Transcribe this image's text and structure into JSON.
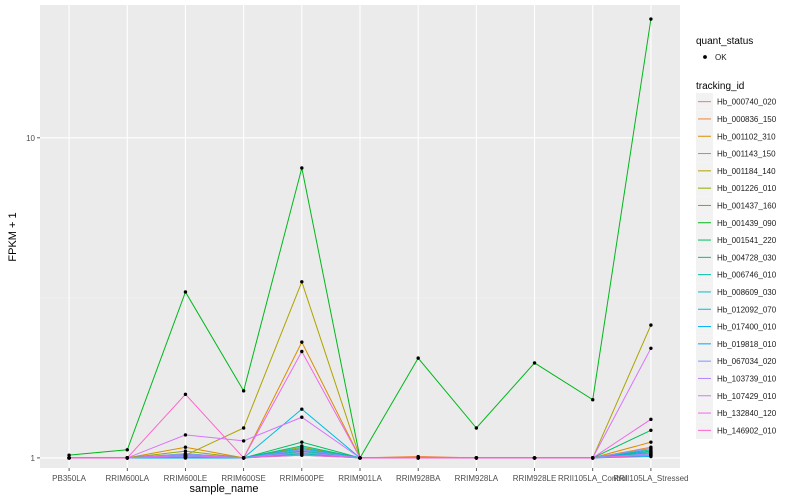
{
  "chart_data": {
    "type": "line",
    "xlabel": "sample_name",
    "ylabel": "FPKM + 1",
    "y_scale": "log10",
    "ylim": [
      0.93,
      26
    ],
    "y_ticks": [
      {
        "value": 1,
        "label": "1"
      },
      {
        "value": 10,
        "label": "10"
      }
    ],
    "grid": true,
    "legend_position": "right",
    "categories": [
      "PB350LA",
      "RRIM600LA",
      "RRIM600LE",
      "RRIM600SE",
      "RRIM600PE",
      "RRIM901LA",
      "RRIM928BA",
      "RRIM928LA",
      "RRIM928LE",
      "RRII105LA_Control",
      "RRII105LA_Stressed"
    ],
    "quant_status": {
      "title": "quant_status",
      "items": [
        "OK"
      ]
    },
    "legend_title": "tracking_id",
    "series": [
      {
        "name": "Hb_000740_020",
        "color": "#F8766D",
        "values": [
          1,
          1,
          1.02,
          1,
          1.05,
          1,
          1,
          1,
          1,
          1,
          1.05
        ]
      },
      {
        "name": "Hb_000836_150",
        "color": "#EC8239",
        "values": [
          1,
          1,
          1.01,
          1,
          1.03,
          1,
          1.01,
          1,
          1,
          1,
          1.08
        ]
      },
      {
        "name": "Hb_001102_310",
        "color": "#DB8E00",
        "values": [
          1,
          1,
          1.08,
          1,
          2.3,
          1,
          1,
          1,
          1,
          1,
          1.12
        ]
      },
      {
        "name": "Hb_001143_150",
        "color": "#C79800",
        "values": [
          1,
          1,
          1.03,
          1,
          1.06,
          1,
          1,
          1,
          1,
          1,
          1.04
        ]
      },
      {
        "name": "Hb_001184_140",
        "color": "#AEA200",
        "values": [
          1,
          1,
          1.02,
          1.24,
          3.55,
          1,
          1,
          1,
          1,
          1,
          2.6
        ]
      },
      {
        "name": "Hb_001226_010",
        "color": "#8FAA00",
        "values": [
          1,
          1,
          1.05,
          1,
          1.08,
          1,
          1,
          1,
          1,
          1,
          1.03
        ]
      },
      {
        "name": "Hb_001437_160",
        "color": "#64B200",
        "values": [
          1,
          1,
          1.01,
          1,
          1.04,
          1,
          1,
          1,
          1,
          1,
          1.02
        ]
      },
      {
        "name": "Hb_001439_090",
        "color": "#00B81B",
        "values": [
          1.02,
          1.06,
          3.3,
          1.62,
          8.05,
          1,
          2.05,
          1.24,
          1.98,
          1.52,
          23.5
        ]
      },
      {
        "name": "Hb_001541_220",
        "color": "#00BD5C",
        "values": [
          1,
          1,
          1.02,
          1,
          1.12,
          1,
          1,
          1,
          1,
          1,
          1.22
        ]
      },
      {
        "name": "Hb_004728_030",
        "color": "#00C086",
        "values": [
          1,
          1,
          1.01,
          1,
          1.09,
          1,
          1,
          1,
          1,
          1,
          1.06
        ]
      },
      {
        "name": "Hb_006746_010",
        "color": "#00C1A7",
        "values": [
          1,
          1,
          1,
          1,
          1.05,
          1,
          1,
          1,
          1,
          1,
          1.04
        ]
      },
      {
        "name": "Hb_008609_030",
        "color": "#00BFC4",
        "values": [
          1,
          1,
          1,
          1,
          1.03,
          1,
          1,
          1,
          1,
          1,
          1.03
        ]
      },
      {
        "name": "Hb_012092_070",
        "color": "#00BADE",
        "values": [
          1,
          1,
          1.01,
          1,
          1.42,
          1,
          1,
          1,
          1,
          1,
          1.02
        ]
      },
      {
        "name": "Hb_017400_010",
        "color": "#00B2F3",
        "values": [
          1,
          1,
          1.02,
          1,
          1.07,
          1,
          1,
          1,
          1,
          1,
          1.05
        ]
      },
      {
        "name": "Hb_019818_010",
        "color": "#00A6FF",
        "values": [
          1,
          1,
          1,
          1,
          1.02,
          1,
          1,
          1,
          1,
          1,
          1.01
        ]
      },
      {
        "name": "Hb_067034_020",
        "color": "#7C96FF",
        "values": [
          1,
          1,
          1.03,
          1,
          1.06,
          1,
          1,
          1,
          1,
          1,
          1.07
        ]
      },
      {
        "name": "Hb_103739_010",
        "color": "#B385FF",
        "values": [
          1,
          1,
          1.01,
          1,
          1.04,
          1,
          1,
          1,
          1,
          1,
          1.03
        ]
      },
      {
        "name": "Hb_107429_010",
        "color": "#D874FD",
        "values": [
          1,
          1,
          1.18,
          1.13,
          1.34,
          1,
          1,
          1,
          1,
          1,
          2.2
        ]
      },
      {
        "name": "Hb_132840_120",
        "color": "#EF67EB",
        "values": [
          1,
          1,
          1.02,
          1,
          2.15,
          1,
          1,
          1,
          1,
          1,
          1.32
        ]
      },
      {
        "name": "Hb_146902_010",
        "color": "#FF61C9",
        "values": [
          1,
          1,
          1.58,
          1,
          1.02,
          1,
          1,
          1,
          1,
          1,
          1.02
        ]
      }
    ]
  }
}
